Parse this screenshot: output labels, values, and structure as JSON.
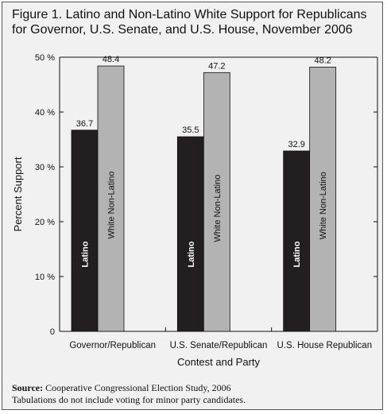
{
  "figure": {
    "title": "Figure 1. Latino and Non-Latino White Support for Republicans for Governor, U.S. Senate, and U.S. House, November 2006",
    "source_label": "Source:",
    "source_text": "Cooperative Congressional Election Study, 2006",
    "note": "Tabulations do not include voting for minor party candidates."
  },
  "colors": {
    "frame_bg": "#f1f1f1",
    "latino": "#231f20",
    "white_non_latino": "#b3b3b3",
    "axis": "#111111"
  },
  "chart_data": {
    "type": "bar",
    "categories": [
      "Governor/Republican",
      "U.S. Senate/Republican",
      "U.S. House Republican"
    ],
    "series": [
      {
        "name": "Latino",
        "values": [
          36.7,
          35.5,
          32.9
        ]
      },
      {
        "name": "White Non-Latino",
        "values": [
          48.4,
          47.2,
          48.2
        ]
      }
    ],
    "xlabel": "Contest and Party",
    "ylabel": "Percent Support",
    "ylim": [
      0,
      50
    ],
    "yticks": [
      0,
      10,
      20,
      30,
      40,
      50
    ],
    "ytick_labels": [
      "0",
      "10 %",
      "20 %",
      "30 %",
      "40 %",
      "50 %"
    ],
    "grid": false,
    "legend": "none (series names written inside bars)"
  }
}
